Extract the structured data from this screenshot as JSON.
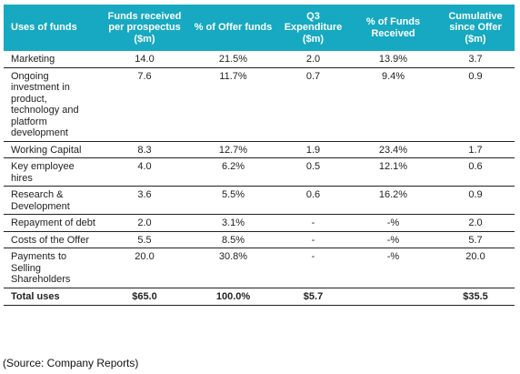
{
  "table": {
    "header_color": "#17a9c1",
    "headers": [
      "Uses of funds",
      "Funds received per prospectus ($m)",
      "% of Offer funds",
      "Q3 Expenditure ($m)",
      "% of Funds Received",
      "Cumulative since Offer ($m)"
    ],
    "rows": [
      {
        "label": "Marketing",
        "cells": [
          "14.0",
          "21.5%",
          "2.0",
          "13.9%",
          "3.7"
        ]
      },
      {
        "label": "Ongoing investment in product, technology and platform development",
        "cells": [
          "7.6",
          "11.7%",
          "0.7",
          "9.4%",
          "0.9"
        ]
      },
      {
        "label": "Working Capital",
        "cells": [
          "8.3",
          "12.7%",
          "1.9",
          "23.4%",
          "1.7"
        ]
      },
      {
        "label": "Key employee hires",
        "cells": [
          "4.0",
          "6.2%",
          "0.5",
          "12.1%",
          "0.6"
        ]
      },
      {
        "label": "Research & Development",
        "cells": [
          "3.6",
          "5.5%",
          "0.6",
          "16.2%",
          "0.9"
        ]
      },
      {
        "label": "Repayment of debt",
        "cells": [
          "2.0",
          "3.1%",
          "-",
          "-%",
          "2.0"
        ]
      },
      {
        "label": "Costs of the Offer",
        "cells": [
          "5.5",
          "8.5%",
          "-",
          "-%",
          "5.7"
        ]
      },
      {
        "label": "Payments to Selling Shareholders",
        "cells": [
          "20.0",
          "30.8%",
          "-",
          "-%",
          "20.0"
        ]
      }
    ],
    "total": {
      "label": "Total uses",
      "cells": [
        "$65.0",
        "100.0%",
        "$5.7",
        "",
        "$35.5"
      ]
    }
  },
  "source": "(Source: Company Reports)"
}
